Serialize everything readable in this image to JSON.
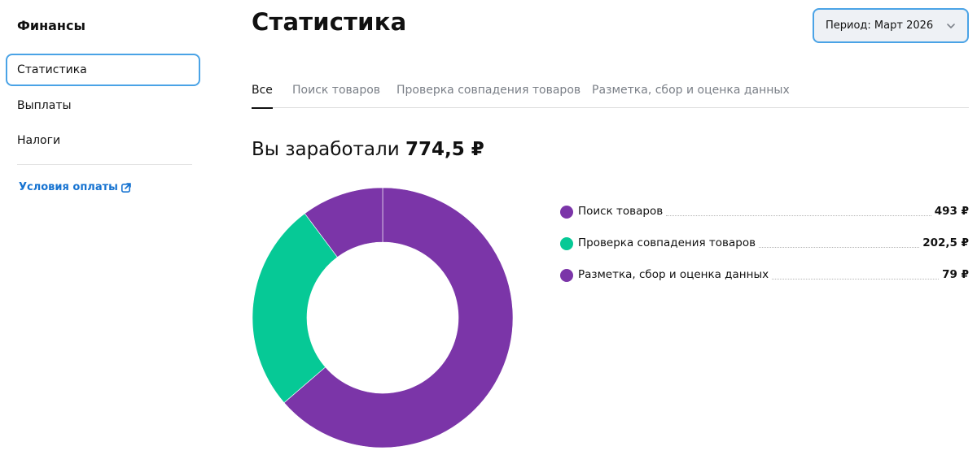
{
  "sidebar": {
    "title": "Финансы",
    "items": [
      {
        "label": "Статистика",
        "active": true
      },
      {
        "label": "Выплаты",
        "active": false
      },
      {
        "label": "Налоги",
        "active": false
      }
    ],
    "payment_terms_link": "Условия оплаты",
    "link_icon": "external-link-icon"
  },
  "header": {
    "title": "Статистика",
    "period_label": "Период: Март 2026",
    "period_icon": "chevron-down-icon"
  },
  "tabs": [
    {
      "label": "Все",
      "active": true
    },
    {
      "label": "Поиск товаров",
      "active": false
    },
    {
      "label": "Проверка совпадения товаров",
      "active": false
    },
    {
      "label": "Разметка, сбор и оценка данных",
      "active": false
    }
  ],
  "earnings": {
    "prefix": "Вы заработали",
    "amount": "774,5 ₽"
  },
  "colors": {
    "purple": "#7b35a8",
    "green": "#06c996",
    "accent_border": "#4aa3e6",
    "link": "#1673d1"
  },
  "chart_data": {
    "type": "pie",
    "title": "",
    "slices": [
      {
        "name": "Поиск товаров",
        "value": 493,
        "label": "493 ₽",
        "color": "#7b35a8"
      },
      {
        "name": "Проверка совпадения товаров",
        "value": 202.5,
        "label": "202,5 ₽",
        "color": "#06c996"
      },
      {
        "name": "Разметка, сбор и оценка данных",
        "value": 79,
        "label": "79 ₽",
        "color": "#7b35a8"
      }
    ],
    "legend": "right"
  }
}
